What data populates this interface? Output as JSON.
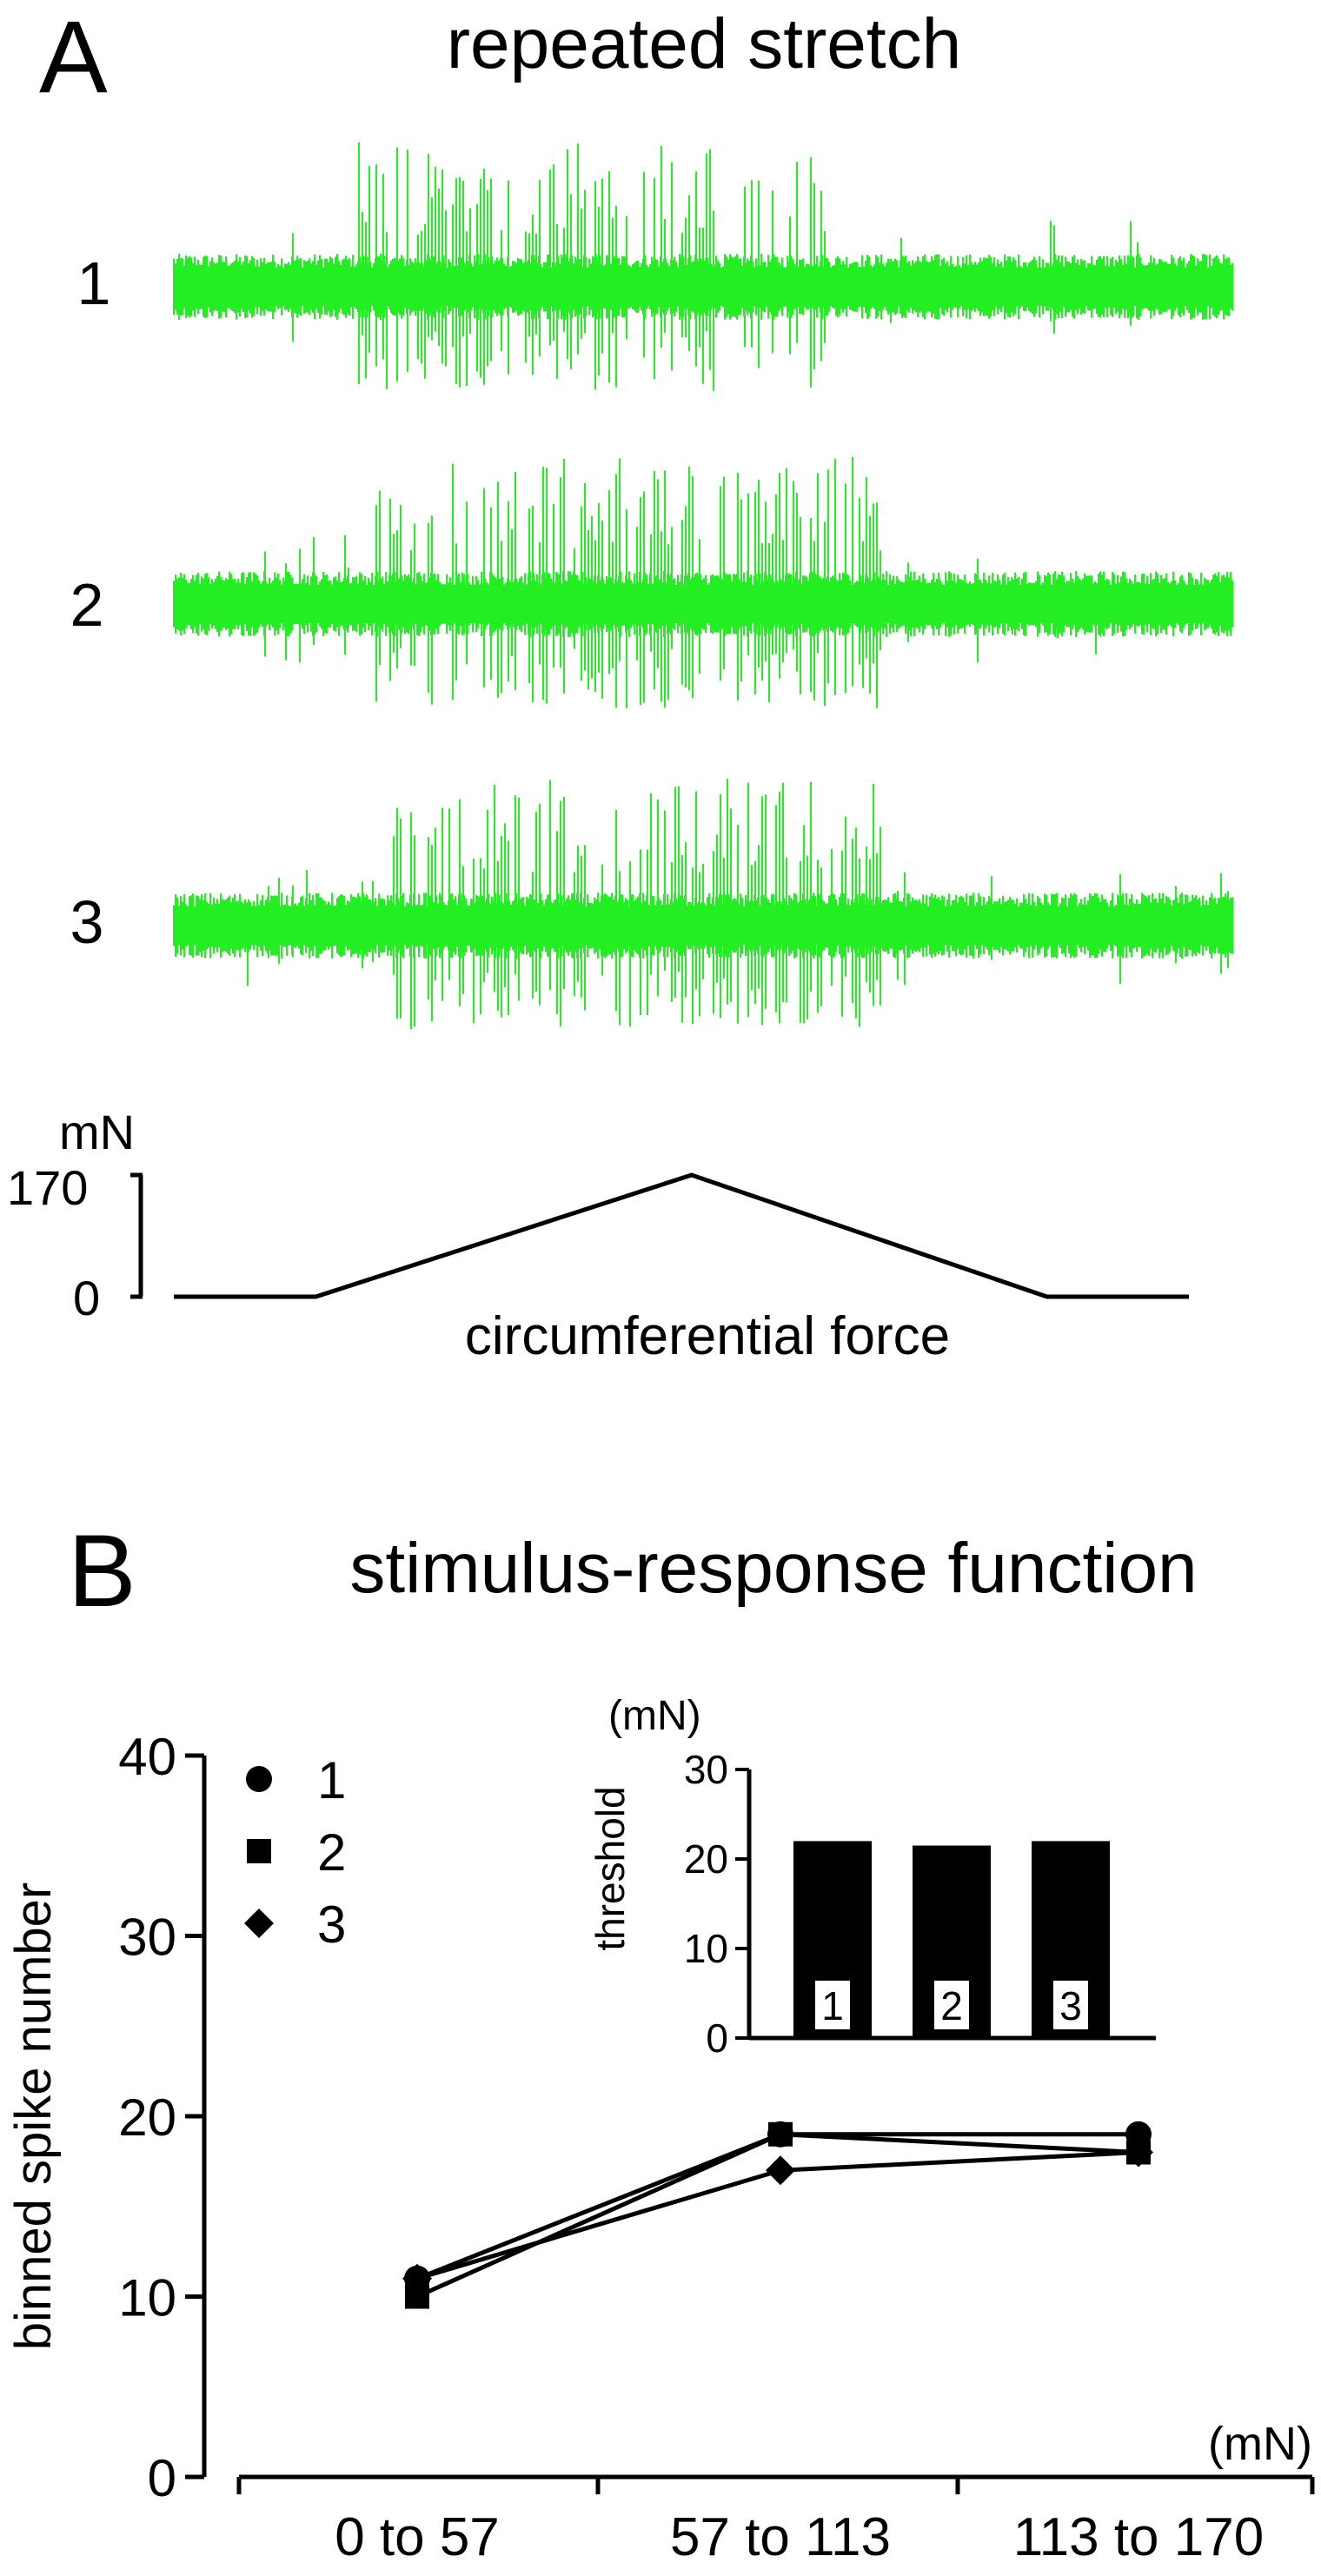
{
  "panel_a": {
    "letter": "A",
    "title": "repeated stretch",
    "traces": [
      {
        "label": "1",
        "burst": [
          0.17,
          0.62
        ]
      },
      {
        "label": "2",
        "burst": [
          0.19,
          0.67
        ]
      },
      {
        "label": "3",
        "burst": [
          0.2,
          0.67
        ]
      }
    ],
    "trace_color": "#22ee22",
    "force": {
      "unit": "mN",
      "scale_max_label": "170",
      "scale_min_label": "0",
      "caption": "circumferential force",
      "profile": [
        [
          0,
          0
        ],
        [
          0.14,
          0
        ],
        [
          0.51,
          170
        ],
        [
          0.86,
          0
        ],
        [
          1.0,
          0
        ]
      ]
    }
  },
  "panel_b": {
    "letter": "B",
    "title": "stimulus-response function",
    "chart_data": [
      {
        "type": "line",
        "categories": [
          "0 to 57",
          "57 to 113",
          "113 to 170"
        ],
        "series": [
          {
            "name": "1",
            "marker": "circle",
            "values": [
              11,
              19,
              19
            ]
          },
          {
            "name": "2",
            "marker": "square",
            "values": [
              10,
              19,
              18
            ]
          },
          {
            "name": "3",
            "marker": "diamond",
            "values": [
              11,
              17,
              18
            ]
          }
        ],
        "xlabel": "(mN)",
        "ylabel": "binned spike number",
        "ylim": [
          0,
          40
        ],
        "yticks": [
          "0",
          "10",
          "20",
          "30",
          "40"
        ],
        "legend": "top-left",
        "grid": false
      },
      {
        "type": "bar",
        "categories": [
          "1",
          "2",
          "3"
        ],
        "values": [
          22,
          21.5,
          22
        ],
        "ylabel": "threshold",
        "unit": "(mN)",
        "ylim": [
          0,
          30
        ],
        "yticks": [
          "0",
          "10",
          "20",
          "30"
        ],
        "bar_color": "#000000"
      }
    ]
  }
}
